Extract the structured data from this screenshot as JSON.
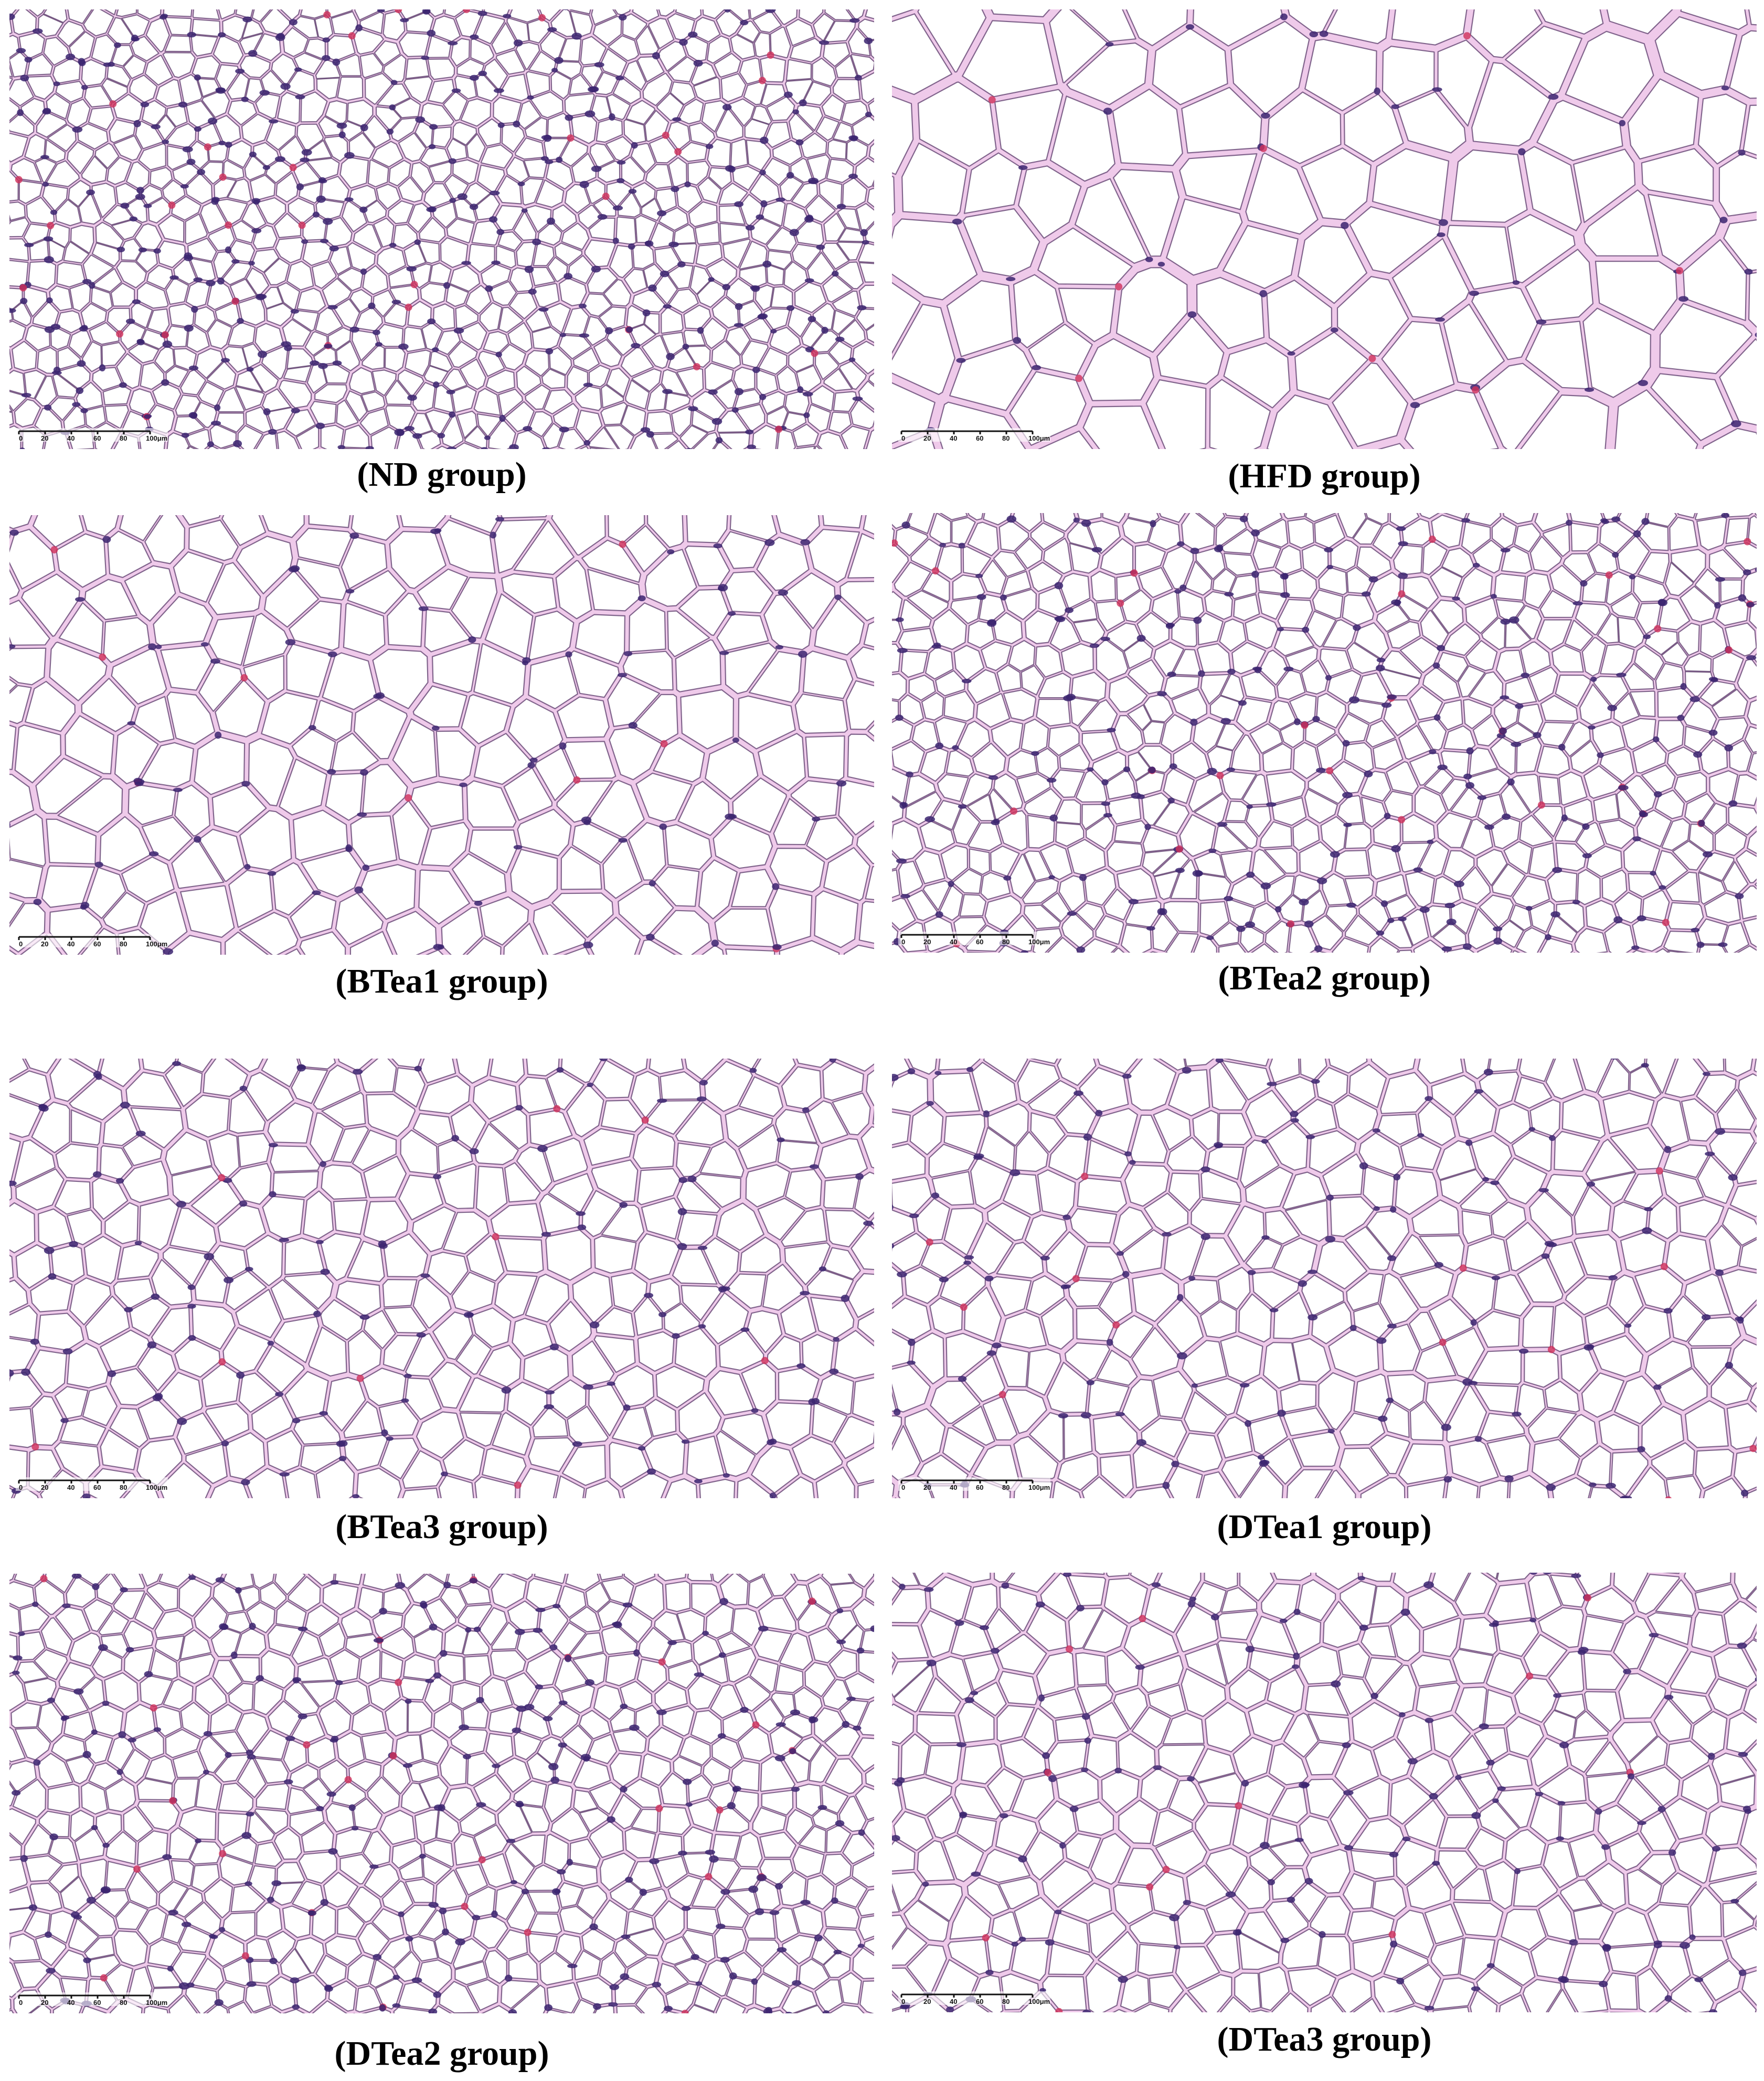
{
  "figure": {
    "panels": [
      {
        "caption": "(ND group)",
        "scale": {
          "ticks": [
            "0",
            "20",
            "40",
            "60",
            "80",
            "100μm"
          ]
        },
        "adipocyte_size": "small"
      },
      {
        "caption": "(HFD group)",
        "scale": {
          "ticks": [
            "0",
            "20",
            "40",
            "60",
            "80",
            "100μm"
          ]
        },
        "adipocyte_size": "very large"
      },
      {
        "caption": "(BTea1 group)",
        "scale": {
          "ticks": [
            "0",
            "20",
            "40",
            "60",
            "80",
            "100μm"
          ]
        },
        "adipocyte_size": "large"
      },
      {
        "caption": "(BTea2 group)",
        "scale": {
          "ticks": [
            "0",
            "20",
            "40",
            "60",
            "80",
            "100μm"
          ]
        },
        "adipocyte_size": "small"
      },
      {
        "caption": "(BTea3 group)",
        "scale": {
          "ticks": [
            "0",
            "20",
            "40",
            "60",
            "80",
            "100μm"
          ]
        },
        "adipocyte_size": "medium"
      },
      {
        "caption": "(DTea1 group)",
        "scale": {
          "ticks": [
            "0",
            "20",
            "40",
            "60",
            "80",
            "100μm"
          ]
        },
        "adipocyte_size": "medium"
      },
      {
        "caption": "(DTea2 group)",
        "scale": {
          "ticks": [
            "0",
            "20",
            "40",
            "60",
            "80",
            "100μm"
          ]
        },
        "adipocyte_size": "small"
      },
      {
        "caption": "(DTea3 group)",
        "scale": {
          "ticks": [
            "0",
            "20",
            "40",
            "60",
            "80",
            "100μm"
          ]
        },
        "adipocyte_size": "medium"
      }
    ],
    "colors": {
      "cytoplasm_pink": "#e6a8dc",
      "membrane": "#5a3a6a",
      "nucleus": "#3b2470",
      "erythrocyte": "#d0305a",
      "cell_interior": "#ffffff"
    }
  }
}
